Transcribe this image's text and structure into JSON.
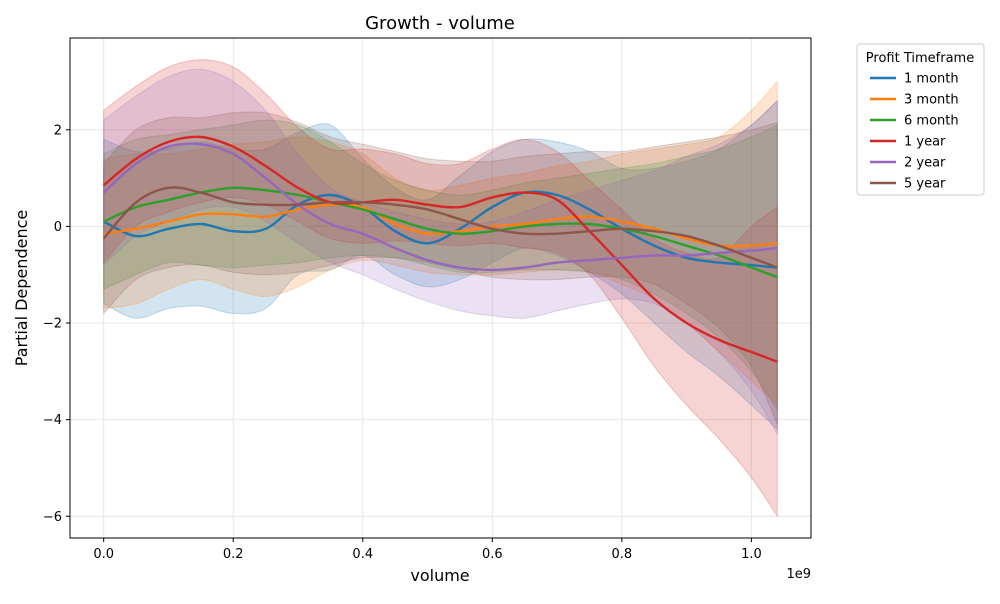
{
  "chart_data": {
    "type": "line",
    "title": "Growth - volume",
    "xlabel": "volume",
    "ylabel": "Partial Dependence",
    "x_offset_label": "1e9",
    "x_tick_labels": [
      "0.0",
      "0.2",
      "0.4",
      "0.6",
      "0.8",
      "1.0"
    ],
    "x_ticks": [
      0.0,
      0.2,
      0.4,
      0.6,
      0.8,
      1.0
    ],
    "y_tick_labels": [
      "−6",
      "−4",
      "−2",
      "0",
      "2"
    ],
    "y_ticks": [
      -6,
      -4,
      -2,
      0,
      2
    ],
    "xlim": [
      -0.052,
      1.092
    ],
    "ylim": [
      -6.45,
      3.9
    ],
    "grid": true,
    "legend": {
      "title": "Profit Timeframe",
      "placement": "outside-right"
    },
    "x": [
      0.0,
      0.05,
      0.1,
      0.15,
      0.2,
      0.25,
      0.3,
      0.35,
      0.4,
      0.45,
      0.5,
      0.55,
      0.6,
      0.65,
      0.7,
      0.75,
      0.8,
      0.85,
      0.9,
      0.95,
      1.0,
      1.04
    ],
    "series": [
      {
        "name": "1 month",
        "color": "#1f77b4",
        "values": [
          0.1,
          -0.2,
          -0.05,
          0.05,
          -0.1,
          -0.05,
          0.45,
          0.65,
          0.4,
          -0.1,
          -0.35,
          -0.05,
          0.4,
          0.7,
          0.65,
          0.35,
          -0.05,
          -0.4,
          -0.65,
          -0.75,
          -0.8,
          -0.85
        ],
        "lower": [
          -1.6,
          -1.9,
          -1.7,
          -1.65,
          -1.8,
          -1.7,
          -1.0,
          -0.9,
          -0.6,
          -1.0,
          -1.25,
          -1.1,
          -0.75,
          -0.45,
          -0.6,
          -0.95,
          -1.4,
          -2.0,
          -2.6,
          -3.1,
          -3.7,
          -4.2
        ],
        "upper": [
          1.8,
          1.55,
          1.6,
          1.75,
          1.6,
          1.6,
          1.95,
          2.1,
          1.4,
          0.8,
          0.55,
          1.05,
          1.55,
          1.8,
          1.75,
          1.55,
          1.2,
          1.2,
          1.35,
          1.6,
          2.1,
          2.6
        ]
      },
      {
        "name": "3 month",
        "color": "#ff7f0e",
        "values": [
          -0.15,
          -0.05,
          0.1,
          0.25,
          0.25,
          0.2,
          0.35,
          0.45,
          0.4,
          0.05,
          -0.15,
          -0.1,
          0.0,
          0.05,
          0.15,
          0.2,
          0.1,
          -0.05,
          -0.25,
          -0.4,
          -0.4,
          -0.35
        ],
        "lower": [
          -1.7,
          -1.6,
          -1.3,
          -1.1,
          -1.3,
          -1.45,
          -1.25,
          -0.9,
          -0.7,
          -0.8,
          -0.95,
          -1.0,
          -1.0,
          -0.95,
          -0.9,
          -0.95,
          -1.2,
          -1.5,
          -2.0,
          -2.6,
          -3.2,
          -3.7
        ],
        "upper": [
          1.4,
          1.5,
          1.5,
          1.6,
          1.7,
          1.75,
          1.85,
          1.75,
          1.5,
          1.0,
          0.75,
          0.85,
          1.0,
          1.1,
          1.25,
          1.35,
          1.5,
          1.6,
          1.7,
          1.85,
          2.4,
          3.0
        ]
      },
      {
        "name": "6 month",
        "color": "#2ca02c",
        "values": [
          0.1,
          0.4,
          0.55,
          0.7,
          0.8,
          0.75,
          0.65,
          0.5,
          0.35,
          0.15,
          -0.05,
          -0.15,
          -0.1,
          0.0,
          0.05,
          0.05,
          -0.05,
          -0.2,
          -0.4,
          -0.6,
          -0.85,
          -1.05
        ],
        "lower": [
          -1.3,
          -1.0,
          -0.75,
          -0.8,
          -0.85,
          -0.8,
          -0.75,
          -0.65,
          -0.6,
          -0.65,
          -0.8,
          -0.95,
          -0.95,
          -0.9,
          -0.9,
          -0.95,
          -1.1,
          -1.4,
          -1.8,
          -2.3,
          -3.0,
          -3.8
        ],
        "upper": [
          1.5,
          1.8,
          1.9,
          2.0,
          2.1,
          2.2,
          2.1,
          1.75,
          1.3,
          0.95,
          0.75,
          0.65,
          0.75,
          0.9,
          1.0,
          1.1,
          1.2,
          1.3,
          1.45,
          1.6,
          1.85,
          2.1
        ]
      },
      {
        "name": "1 year",
        "color": "#d62728",
        "values": [
          0.85,
          1.4,
          1.75,
          1.85,
          1.65,
          1.25,
          0.8,
          0.5,
          0.5,
          0.55,
          0.45,
          0.4,
          0.6,
          0.7,
          0.55,
          -0.1,
          -0.8,
          -1.5,
          -2.0,
          -2.35,
          -2.6,
          -2.8
        ],
        "lower": [
          -0.75,
          0.0,
          0.3,
          0.5,
          0.6,
          0.45,
          0.1,
          -0.25,
          -0.35,
          -0.3,
          -0.35,
          -0.4,
          -0.35,
          -0.45,
          -0.55,
          -1.0,
          -1.9,
          -2.9,
          -3.7,
          -4.4,
          -5.2,
          -6.0
        ],
        "upper": [
          2.4,
          2.9,
          3.3,
          3.45,
          3.3,
          2.75,
          2.05,
          1.6,
          1.6,
          1.5,
          1.3,
          1.3,
          1.6,
          1.8,
          1.55,
          0.95,
          0.35,
          -0.25,
          -0.55,
          -0.65,
          0.0,
          0.4
        ]
      },
      {
        "name": "2 year",
        "color": "#9467bd",
        "values": [
          0.7,
          1.3,
          1.65,
          1.7,
          1.5,
          1.0,
          0.45,
          0.05,
          -0.15,
          -0.45,
          -0.7,
          -0.85,
          -0.9,
          -0.85,
          -0.75,
          -0.7,
          -0.65,
          -0.6,
          -0.6,
          -0.55,
          -0.5,
          -0.45
        ],
        "lower": [
          -0.8,
          -0.2,
          0.1,
          0.35,
          0.4,
          0.1,
          -0.35,
          -0.75,
          -1.0,
          -1.3,
          -1.55,
          -1.75,
          -1.85,
          -1.9,
          -1.75,
          -1.6,
          -1.5,
          -1.6,
          -2.0,
          -2.6,
          -3.4,
          -4.3
        ],
        "upper": [
          2.2,
          2.7,
          3.1,
          3.25,
          3.0,
          2.4,
          1.5,
          0.8,
          0.5,
          0.3,
          0.15,
          0.05,
          0.1,
          0.3,
          0.55,
          0.75,
          0.95,
          1.15,
          1.45,
          1.7,
          2.1,
          2.6
        ]
      },
      {
        "name": "5 year",
        "color": "#8c564b",
        "values": [
          -0.25,
          0.5,
          0.8,
          0.7,
          0.5,
          0.45,
          0.45,
          0.5,
          0.5,
          0.45,
          0.35,
          0.15,
          -0.05,
          -0.15,
          -0.15,
          -0.1,
          -0.05,
          -0.1,
          -0.2,
          -0.4,
          -0.65,
          -0.85
        ],
        "lower": [
          -1.8,
          -1.1,
          -0.85,
          -0.8,
          -0.95,
          -1.0,
          -0.95,
          -0.8,
          -0.65,
          -0.65,
          -0.75,
          -0.9,
          -1.05,
          -1.1,
          -1.1,
          -1.05,
          -1.05,
          -1.2,
          -1.6,
          -2.1,
          -2.9,
          -4.1
        ],
        "upper": [
          1.3,
          2.0,
          2.25,
          2.25,
          2.35,
          2.35,
          2.15,
          1.85,
          1.7,
          1.55,
          1.4,
          1.35,
          1.35,
          1.45,
          1.5,
          1.55,
          1.55,
          1.65,
          1.75,
          1.85,
          2.0,
          2.15
        ]
      }
    ]
  }
}
